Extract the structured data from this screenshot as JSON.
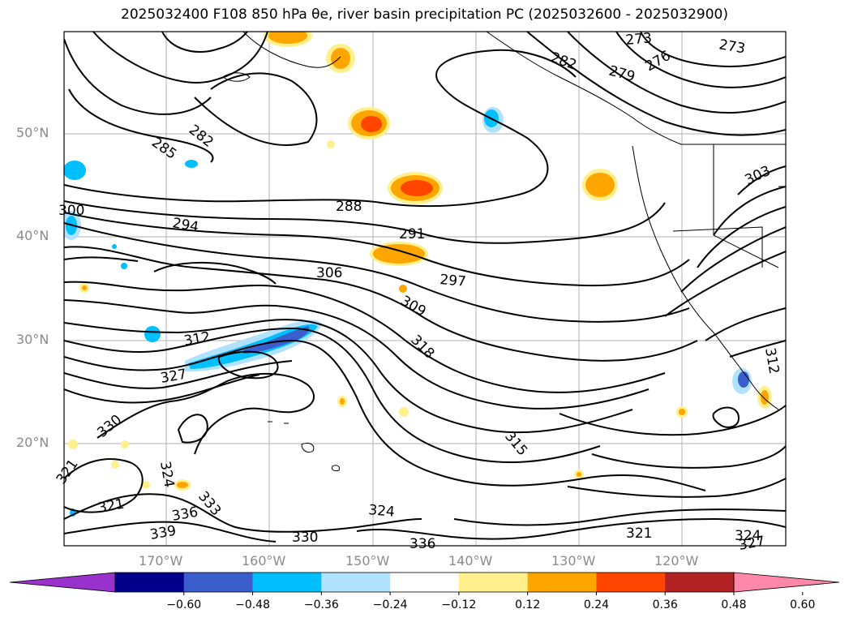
{
  "title": "2025032400 F108 850 hPa θe, river basin precipitation PC (2025032600 - 2025032900)",
  "map": {
    "lat_labels": [
      "50°N",
      "40°N",
      "30°N",
      "20°N"
    ],
    "lon_labels": [
      "170°W",
      "160°W",
      "150°W",
      "140°W",
      "130°W",
      "120°W"
    ],
    "contour_labels": [
      "273",
      "273",
      "282",
      "279",
      "276",
      "285",
      "282",
      "288",
      "294",
      "291",
      "297",
      "306",
      "303",
      "309",
      "312",
      "318",
      "327",
      "330",
      "315",
      "321",
      "324",
      "321",
      "324",
      "333",
      "336",
      "339",
      "330",
      "336",
      "321",
      "324",
      "327",
      "300",
      "312"
    ]
  },
  "colorbar": {
    "ticks": [
      "−0.60",
      "−0.48",
      "−0.36",
      "−0.24",
      "−0.12",
      "0.12",
      "0.24",
      "0.36",
      "0.48",
      "0.60"
    ],
    "colors": [
      "#9932cc",
      "#00008b",
      "#3a5fcd",
      "#00bfff",
      "#b0e2ff",
      "#ffffff",
      "#fff08c",
      "#ffa500",
      "#ff4500",
      "#b22222",
      "#ff88aa"
    ]
  }
}
